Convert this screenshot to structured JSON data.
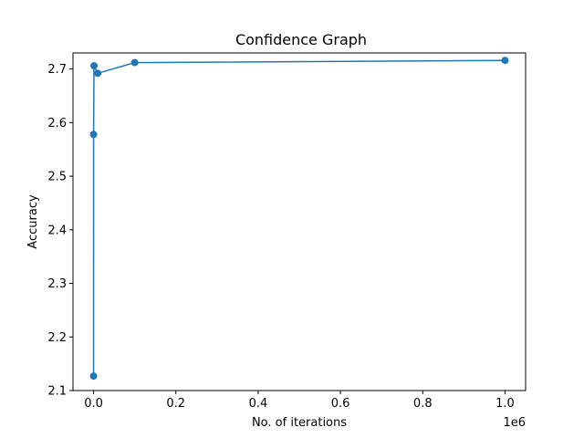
{
  "chart_data": {
    "type": "line",
    "title": "Confidence Graph",
    "xlabel": "No. of iterations",
    "ylabel": "Accuracy",
    "x_offset_label": "1e6",
    "xlim": [
      -0.05,
      1.05
    ],
    "ylim": [
      2.1,
      2.73
    ],
    "x_ticks": [
      0.0,
      0.2,
      0.4,
      0.6,
      0.8,
      1.0
    ],
    "x_tick_labels": [
      "0.0",
      "0.2",
      "0.4",
      "0.6",
      "0.8",
      "1.0"
    ],
    "y_ticks": [
      2.1,
      2.2,
      2.3,
      2.4,
      2.5,
      2.6,
      2.7
    ],
    "y_tick_labels": [
      "2.1",
      "2.2",
      "2.3",
      "2.4",
      "2.5",
      "2.6",
      "2.7"
    ],
    "grid": false,
    "series": [
      {
        "color": "#1f77b4",
        "marker": "circle",
        "x": [
          10,
          100,
          1000,
          10000,
          100000,
          1000000
        ],
        "y": [
          2.127,
          2.578,
          2.706,
          2.692,
          2.712,
          2.716
        ]
      }
    ]
  }
}
